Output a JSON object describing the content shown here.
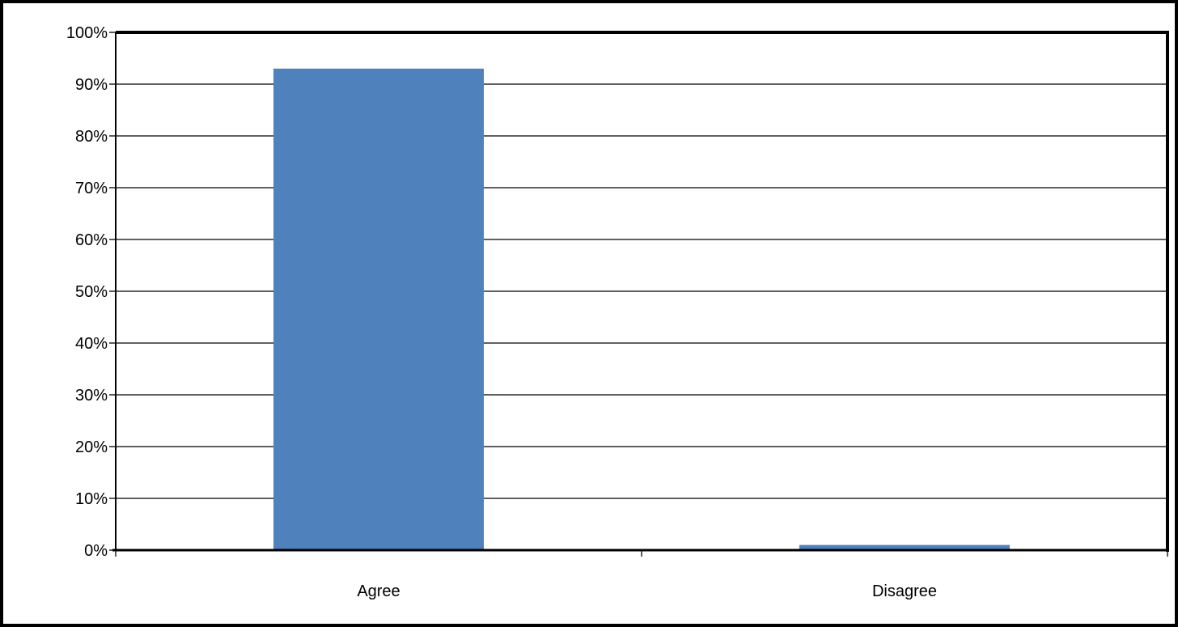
{
  "chart_data": {
    "type": "bar",
    "categories": [
      "Agree",
      "Disagree"
    ],
    "values": [
      93,
      1
    ],
    "title": "",
    "xlabel": "",
    "ylabel": "",
    "ylim": [
      0,
      100
    ],
    "y_ticks": [
      "0%",
      "10%",
      "20%",
      "30%",
      "40%",
      "50%",
      "60%",
      "70%",
      "80%",
      "90%",
      "100%"
    ],
    "y_tick_values": [
      0,
      10,
      20,
      30,
      40,
      50,
      60,
      70,
      80,
      90,
      100
    ],
    "grid": true,
    "legend": "none",
    "bar_color": "#4F81BD",
    "grid_color": "#000000",
    "frame_color": "#000000"
  }
}
